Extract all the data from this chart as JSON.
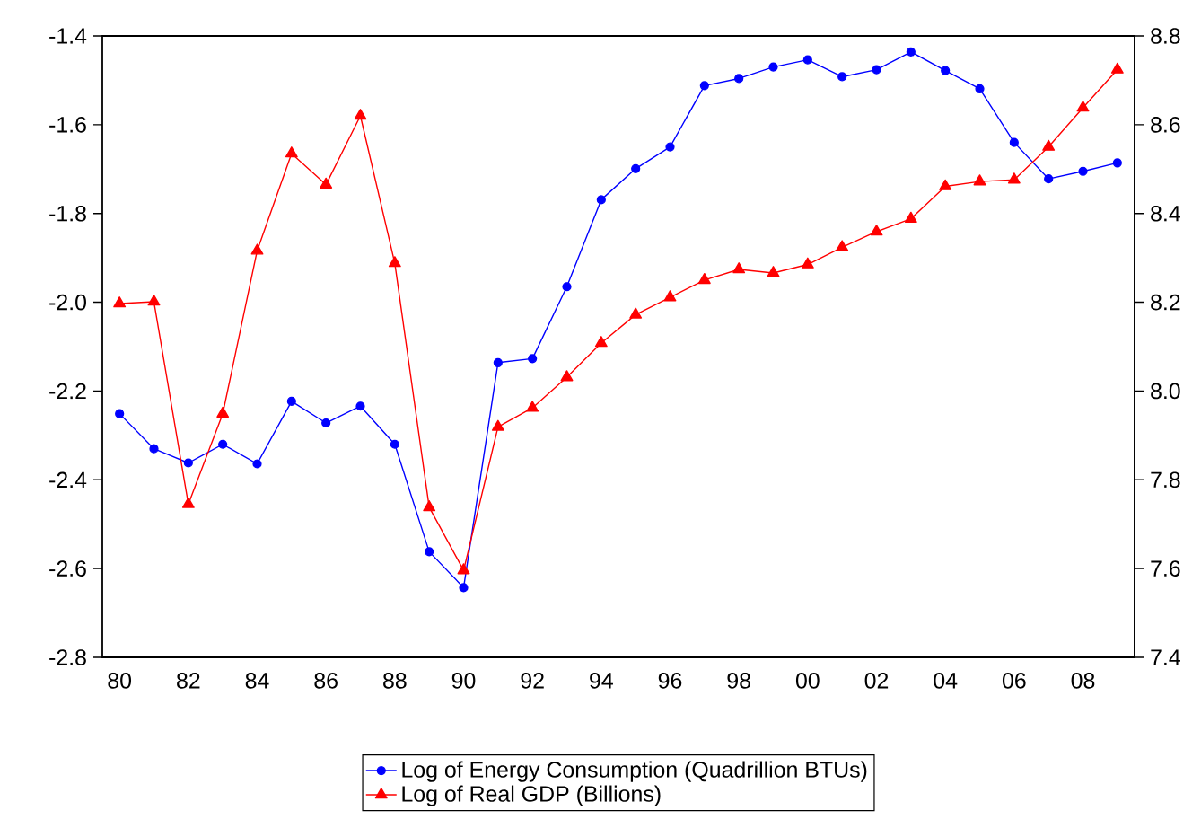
{
  "chart_data": {
    "type": "line",
    "categories": [
      "80",
      null,
      "82",
      null,
      "84",
      null,
      "86",
      null,
      "88",
      null,
      "90",
      null,
      "92",
      null,
      "94",
      null,
      "96",
      null,
      "98",
      null,
      "00",
      null,
      "02",
      null,
      "04",
      null,
      "06",
      null,
      "08",
      null
    ],
    "series": [
      {
        "name": "Log of Energy Consumption (Quadrillion BTUs)",
        "color": "#0000ff",
        "marker": "circle",
        "values": [
          -2.251,
          -2.33,
          -2.362,
          -2.32,
          -2.364,
          -2.223,
          -2.272,
          -2.234,
          -2.32,
          -2.562,
          -2.643,
          -2.136,
          -2.127,
          -1.965,
          -1.769,
          -1.699,
          -1.65,
          -1.512,
          -1.496,
          -1.47,
          -1.454,
          -1.492,
          -1.476,
          -1.436,
          -1.478,
          -1.519,
          -1.64,
          -1.722,
          -1.705,
          -1.686
        ]
      },
      {
        "name": "Log of Real GDP (Billions)",
        "color": "#ff0000",
        "marker": "triangle",
        "axis": "y2",
        "values": [
          8.197,
          8.201,
          7.745,
          7.949,
          8.316,
          8.535,
          8.465,
          8.62,
          8.288,
          7.738,
          7.596,
          7.919,
          7.962,
          8.031,
          8.108,
          8.172,
          8.211,
          8.25,
          8.274,
          8.266,
          8.285,
          8.324,
          8.359,
          8.388,
          8.461,
          8.472,
          8.476,
          8.55,
          8.638,
          8.724
        ]
      }
    ],
    "ylim": [
      -2.8,
      -1.4
    ],
    "yticks": [
      {
        "value": -2.8,
        "label": "-2.8"
      },
      {
        "value": -2.6,
        "label": "-2.6"
      },
      {
        "value": -2.4,
        "label": "-2.4"
      },
      {
        "value": -2.2,
        "label": "-2.2"
      },
      {
        "value": -2.0,
        "label": "-2.0"
      },
      {
        "value": -1.8,
        "label": "-1.8"
      },
      {
        "value": -1.6,
        "label": "-1.6"
      },
      {
        "value": -1.4,
        "label": "-1.4"
      }
    ],
    "y2lim": [
      7.4,
      8.8
    ],
    "y2ticks": [
      {
        "value": 7.4,
        "label": "7.4"
      },
      {
        "value": 7.6,
        "label": "7.6"
      },
      {
        "value": 7.8,
        "label": "7.8"
      },
      {
        "value": 8.0,
        "label": "8.0"
      },
      {
        "value": 8.2,
        "label": "8.2"
      },
      {
        "value": 8.4,
        "label": "8.4"
      },
      {
        "value": 8.6,
        "label": "8.6"
      },
      {
        "value": 8.8,
        "label": "8.8"
      }
    ],
    "grid": false,
    "legend": "bottom",
    "line_style": "solid"
  }
}
